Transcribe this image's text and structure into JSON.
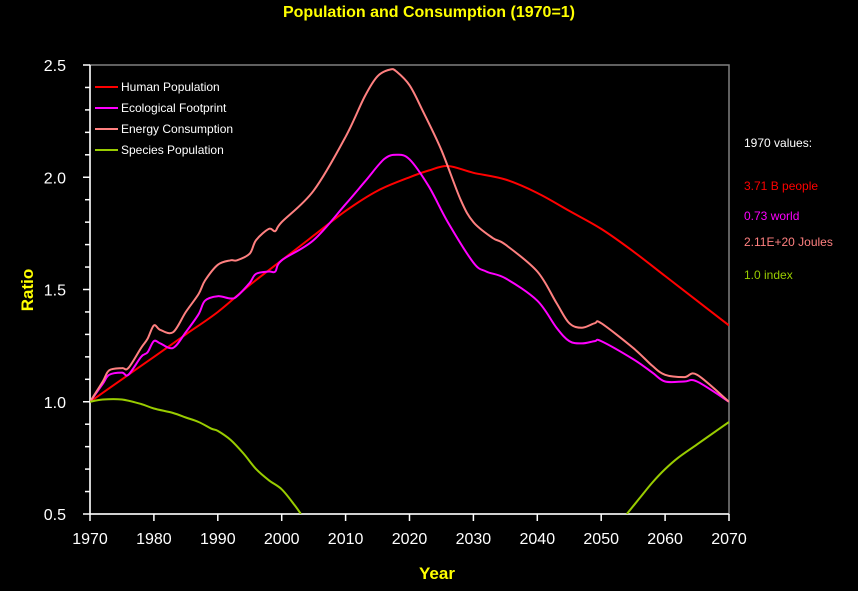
{
  "chart_data": {
    "type": "line",
    "title": "Population and Consumption (1970=1)",
    "xlabel": "Year",
    "ylabel": "Ratio",
    "xlim": [
      1970,
      2070
    ],
    "ylim": [
      0.5,
      2.5
    ],
    "x_ticks": [
      "1970",
      "1980",
      "1990",
      "2000",
      "2010",
      "2020",
      "2030",
      "2040",
      "2050",
      "2060",
      "2070"
    ],
    "y_ticks": [
      "0.5",
      "1.0",
      "1.5",
      "2.0",
      "2.5"
    ],
    "y_minor_step": 0.1,
    "grid": false,
    "legend_position": "top-left",
    "series": [
      {
        "name": "Human Population",
        "color": "#ff0000",
        "x": [
          1970,
          1975,
          1980,
          1985,
          1990,
          1995,
          2000,
          2005,
          2010,
          2015,
          2020,
          2023,
          2026,
          2030,
          2035,
          2040,
          2045,
          2050,
          2055,
          2060,
          2065,
          2070
        ],
        "values": [
          1.0,
          1.1,
          1.2,
          1.3,
          1.4,
          1.52,
          1.63,
          1.74,
          1.85,
          1.94,
          2.0,
          2.03,
          2.05,
          2.02,
          1.99,
          1.93,
          1.85,
          1.77,
          1.67,
          1.56,
          1.45,
          1.34
        ]
      },
      {
        "name": "Ecological Footprint",
        "color": "#ff00ff",
        "x": [
          1970,
          1972,
          1973,
          1975,
          1976,
          1978,
          1979,
          1980,
          1981,
          1983,
          1985,
          1987,
          1988,
          1990,
          1992,
          1993,
          1995,
          1996,
          1998,
          1999,
          2000,
          2005,
          2010,
          2013,
          2016,
          2018,
          2020,
          2023,
          2026,
          2030,
          2032,
          2035,
          2040,
          2043,
          2045,
          2047,
          2049,
          2050,
          2055,
          2058,
          2060,
          2063,
          2065,
          2070
        ],
        "values": [
          1.0,
          1.08,
          1.12,
          1.13,
          1.12,
          1.2,
          1.22,
          1.27,
          1.26,
          1.24,
          1.31,
          1.39,
          1.45,
          1.47,
          1.46,
          1.47,
          1.53,
          1.57,
          1.58,
          1.58,
          1.63,
          1.72,
          1.88,
          1.98,
          2.08,
          2.1,
          2.08,
          1.96,
          1.8,
          1.62,
          1.58,
          1.55,
          1.45,
          1.33,
          1.27,
          1.26,
          1.27,
          1.27,
          1.19,
          1.13,
          1.09,
          1.09,
          1.09,
          1.0
        ]
      },
      {
        "name": "Energy Consumption",
        "color": "#ff8080",
        "x": [
          1970,
          1972,
          1973,
          1975,
          1976,
          1978,
          1979,
          1980,
          1981,
          1983,
          1985,
          1987,
          1988,
          1990,
          1992,
          1993,
          1995,
          1996,
          1998,
          1999,
          2000,
          2005,
          2010,
          2013,
          2015,
          2017,
          2018,
          2020,
          2022,
          2025,
          2028,
          2030,
          2033,
          2035,
          2040,
          2043,
          2045,
          2047,
          2049,
          2050,
          2055,
          2058,
          2060,
          2063,
          2065,
          2070
        ],
        "values": [
          1.0,
          1.09,
          1.14,
          1.15,
          1.15,
          1.24,
          1.28,
          1.34,
          1.32,
          1.31,
          1.4,
          1.48,
          1.54,
          1.61,
          1.63,
          1.63,
          1.66,
          1.72,
          1.77,
          1.76,
          1.8,
          1.94,
          2.18,
          2.36,
          2.45,
          2.48,
          2.47,
          2.41,
          2.3,
          2.12,
          1.9,
          1.8,
          1.73,
          1.7,
          1.58,
          1.44,
          1.35,
          1.33,
          1.35,
          1.35,
          1.24,
          1.16,
          1.12,
          1.11,
          1.12,
          1.0
        ]
      },
      {
        "name": "Species Population",
        "color": "#99cc00",
        "x": [
          1970,
          1972,
          1975,
          1978,
          1980,
          1983,
          1985,
          1987,
          1989,
          1990,
          1992,
          1994,
          1996,
          1998,
          2000,
          2002,
          2003,
          2054,
          2056,
          2058,
          2060,
          2062,
          2065,
          2068,
          2070
        ],
        "values": [
          1.0,
          1.01,
          1.01,
          0.99,
          0.97,
          0.95,
          0.93,
          0.91,
          0.88,
          0.87,
          0.83,
          0.77,
          0.7,
          0.65,
          0.61,
          0.54,
          0.5,
          0.5,
          0.57,
          0.64,
          0.7,
          0.75,
          0.81,
          0.87,
          0.91
        ]
      }
    ],
    "side_annotations": {
      "heading": "1970 values:",
      "items": [
        {
          "text": "3.71 B people",
          "color": "#ff0000"
        },
        {
          "text": "0.73 world",
          "color": "#ff00ff"
        },
        {
          "text": "2.11E+20 Joules",
          "color": "#ff8080"
        },
        {
          "text": "1.0 index",
          "color": "#99cc00"
        }
      ]
    }
  }
}
